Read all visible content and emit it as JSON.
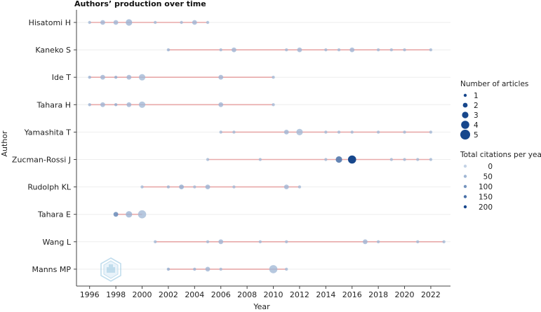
{
  "chart_data": {
    "type": "scatter",
    "title": "Authors’ production over time",
    "xlabel": "Year",
    "ylabel": "Author",
    "xlim": [
      1995,
      2023.5
    ],
    "xticks": [
      1996,
      1998,
      2000,
      2002,
      2004,
      2006,
      2008,
      2010,
      2012,
      2014,
      2016,
      2018,
      2020,
      2022
    ],
    "authors": [
      {
        "name": "Hisatomi H",
        "points": [
          [
            1996,
            1,
            20
          ],
          [
            1997,
            2,
            25
          ],
          [
            1998,
            2,
            25
          ],
          [
            1999,
            3,
            30
          ],
          [
            2001,
            1,
            20
          ],
          [
            2003,
            1,
            20
          ],
          [
            2004,
            2,
            25
          ],
          [
            2005,
            1,
            20
          ]
        ]
      },
      {
        "name": "Kaneko S",
        "points": [
          [
            2002,
            1,
            30
          ],
          [
            2006,
            1,
            20
          ],
          [
            2007,
            2,
            25
          ],
          [
            2011,
            1,
            20
          ],
          [
            2012,
            2,
            25
          ],
          [
            2014,
            1,
            20
          ],
          [
            2015,
            1,
            20
          ],
          [
            2016,
            2,
            25
          ],
          [
            2018,
            1,
            20
          ],
          [
            2019,
            1,
            20
          ],
          [
            2020,
            1,
            20
          ],
          [
            2022,
            1,
            20
          ]
        ]
      },
      {
        "name": "Ide T",
        "points": [
          [
            1996,
            1,
            30
          ],
          [
            1997,
            2,
            25
          ],
          [
            1998,
            1,
            40
          ],
          [
            1999,
            2,
            25
          ],
          [
            2000,
            3,
            20
          ],
          [
            2006,
            2,
            25
          ],
          [
            2010,
            1,
            20
          ]
        ]
      },
      {
        "name": "Tahara H",
        "points": [
          [
            1996,
            1,
            30
          ],
          [
            1997,
            2,
            25
          ],
          [
            1998,
            1,
            40
          ],
          [
            1999,
            2,
            25
          ],
          [
            2000,
            3,
            20
          ],
          [
            2006,
            2,
            25
          ],
          [
            2010,
            1,
            20
          ]
        ]
      },
      {
        "name": "Yamashita T",
        "points": [
          [
            2006,
            1,
            20
          ],
          [
            2007,
            1,
            20
          ],
          [
            2011,
            2,
            25
          ],
          [
            2012,
            3,
            20
          ],
          [
            2014,
            1,
            20
          ],
          [
            2015,
            1,
            20
          ],
          [
            2016,
            1,
            20
          ],
          [
            2018,
            1,
            20
          ],
          [
            2020,
            1,
            20
          ],
          [
            2022,
            1,
            20
          ]
        ]
      },
      {
        "name": "Zucman-Rossi J",
        "points": [
          [
            2005,
            1,
            20
          ],
          [
            2009,
            1,
            20
          ],
          [
            2014,
            1,
            20
          ],
          [
            2015,
            3,
            120
          ],
          [
            2016,
            4,
            200
          ],
          [
            2019,
            1,
            20
          ],
          [
            2020,
            1,
            20
          ],
          [
            2021,
            1,
            20
          ],
          [
            2022,
            1,
            20
          ]
        ]
      },
      {
        "name": "Rudolph KL",
        "points": [
          [
            2000,
            1,
            20
          ],
          [
            2002,
            1,
            30
          ],
          [
            2003,
            2,
            40
          ],
          [
            2004,
            1,
            20
          ],
          [
            2005,
            2,
            30
          ],
          [
            2007,
            1,
            20
          ],
          [
            2011,
            2,
            25
          ],
          [
            2012,
            1,
            20
          ]
        ]
      },
      {
        "name": "Tahara E",
        "points": [
          [
            1998,
            2,
            90
          ],
          [
            1999,
            3,
            30
          ],
          [
            2000,
            4,
            20
          ]
        ]
      },
      {
        "name": "Wang L",
        "points": [
          [
            2001,
            1,
            20
          ],
          [
            2005,
            1,
            20
          ],
          [
            2006,
            2,
            25
          ],
          [
            2009,
            1,
            20
          ],
          [
            2011,
            1,
            20
          ],
          [
            2017,
            2,
            25
          ],
          [
            2018,
            1,
            20
          ],
          [
            2021,
            1,
            20
          ],
          [
            2023,
            1,
            20
          ]
        ]
      },
      {
        "name": "Manns MP",
        "points": [
          [
            2002,
            1,
            40
          ],
          [
            2004,
            1,
            30
          ],
          [
            2005,
            2,
            25
          ],
          [
            2006,
            1,
            20
          ],
          [
            2010,
            4,
            20
          ],
          [
            2011,
            1,
            20
          ]
        ]
      }
    ],
    "legend_articles": {
      "title": "Number of articles",
      "values": [
        1,
        2,
        3,
        4,
        5
      ]
    },
    "legend_citations": {
      "title": "Total citations per year",
      "values": [
        0,
        50,
        100,
        150,
        200
      ]
    }
  }
}
